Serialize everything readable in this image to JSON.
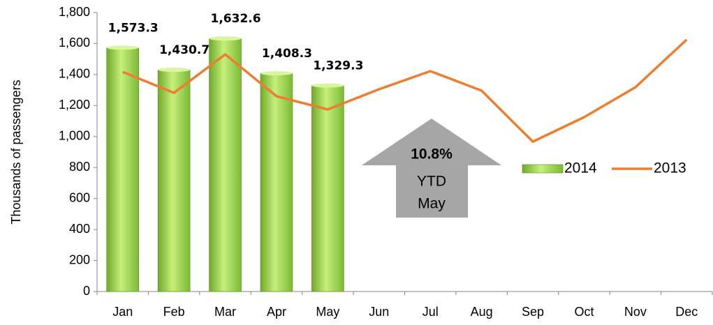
{
  "chart_data": {
    "type": "bar_line",
    "y_axis_label": "Thousands  of  passengers",
    "categories": [
      "Jan",
      "Feb",
      "Mar",
      "Apr",
      "May",
      "Jun",
      "Jul",
      "Aug",
      "Sep",
      "Oct",
      "Nov",
      "Dec"
    ],
    "series": [
      {
        "name": "2014",
        "type": "bar",
        "color": "#92d050",
        "values": [
          1573.3,
          1430.7,
          1632.6,
          1408.3,
          1329.3,
          null,
          null,
          null,
          null,
          null,
          null,
          null
        ],
        "value_labels": [
          "1,573.3",
          "1,430.7",
          "1,632.6",
          "1,408.3",
          "1,329.3",
          null,
          null,
          null,
          null,
          null,
          null,
          null
        ]
      },
      {
        "name": "2013",
        "type": "line",
        "color": "#ed7d31",
        "values": [
          1417,
          1282,
          1530,
          1260,
          1175,
          1305,
          1422,
          1296,
          967,
          1125,
          1318,
          1625
        ]
      }
    ],
    "ylim": [
      0,
      1800
    ],
    "yticks": [
      0,
      200,
      400,
      600,
      800,
      {
        "value": 1000,
        "label": "1,000"
      },
      {
        "value": 1200,
        "label": "1,200"
      },
      {
        "value": 1400,
        "label": "1,400"
      },
      {
        "value": 1600,
        "label": "1,600"
      },
      {
        "value": 1800,
        "label": "1,800"
      }
    ],
    "annotation": {
      "lines": [
        "10.8%",
        "YTD",
        "May"
      ]
    },
    "legend": "right"
  }
}
